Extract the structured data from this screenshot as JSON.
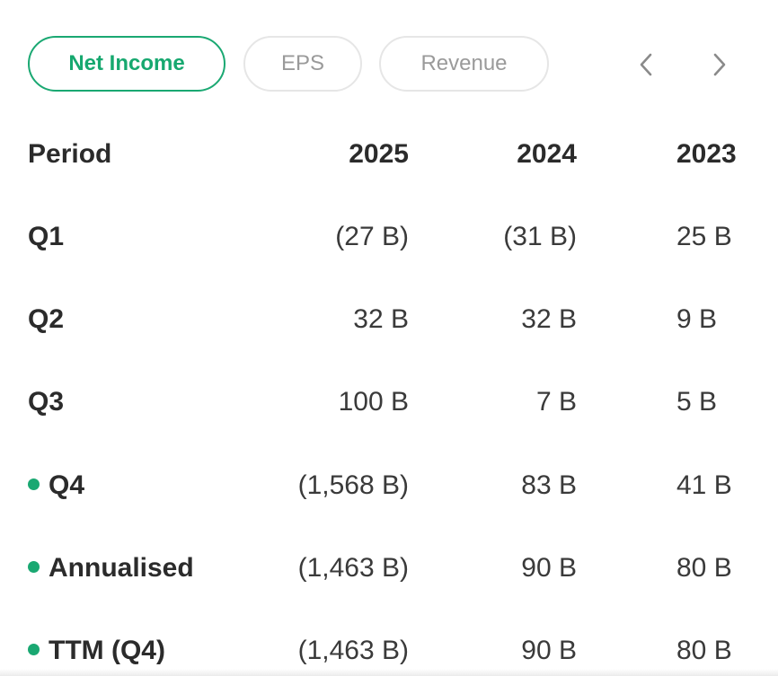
{
  "tabs": {
    "items": [
      {
        "label": "Net Income",
        "active": true
      },
      {
        "label": "EPS",
        "active": false
      },
      {
        "label": "Revenue",
        "active": false
      }
    ],
    "prev_icon": "chevron-left-icon",
    "next_icon": "chevron-right-icon"
  },
  "colors": {
    "accent": "#1aa872",
    "text": "#2b2b2b",
    "muted": "#9a9a9a",
    "border": "#e6e6e6"
  },
  "table": {
    "header": {
      "label": "Period",
      "years": [
        "2025",
        "2024",
        "2023"
      ]
    },
    "rows": [
      {
        "label": "Q1",
        "marked": false,
        "values": [
          "(27 B)",
          "(31 B)",
          "25 B"
        ]
      },
      {
        "label": "Q2",
        "marked": false,
        "values": [
          "32 B",
          "32 B",
          "9 B"
        ]
      },
      {
        "label": "Q3",
        "marked": false,
        "values": [
          "100 B",
          "7 B",
          "5 B"
        ]
      },
      {
        "label": "Q4",
        "marked": true,
        "values": [
          "(1,568 B)",
          "83 B",
          "41 B"
        ]
      },
      {
        "label": "Annualised",
        "marked": true,
        "values": [
          "(1,463 B)",
          "90 B",
          "80 B"
        ]
      },
      {
        "label": "TTM (Q4)",
        "marked": true,
        "values": [
          "(1,463 B)",
          "90 B",
          "80 B"
        ]
      }
    ]
  }
}
